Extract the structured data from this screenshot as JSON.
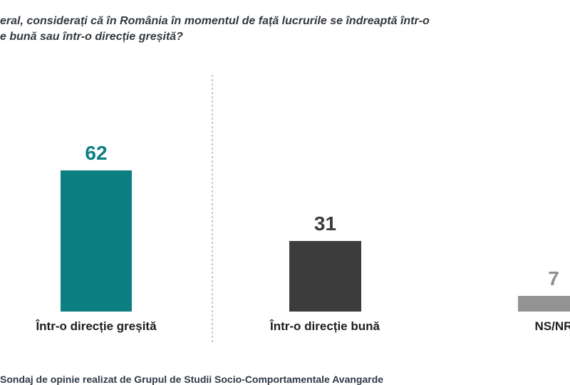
{
  "question": {
    "line1": "eral, considerați că în România în momentul de față lucrurile se îndreaptă într-o",
    "line2": "e bună sau într-o direcție greșită?"
  },
  "chart_data": {
    "type": "bar",
    "title": "eral, considerați că în România în momentul de față lucrurile se îndreaptă într-o e bună sau într-o direcție greșită?",
    "categories": [
      "Într-o direcție greșită",
      "Într-o direcție bună",
      "NS/NR"
    ],
    "values": [
      62,
      31,
      7
    ],
    "bar_colors": [
      "#0C7F82",
      "#3C3C3C",
      "#939393"
    ],
    "value_label_colors": [
      "#0C7F82",
      "#3C3C3C",
      "#8E8E8E"
    ],
    "ylim": [
      0,
      100
    ],
    "grid": false,
    "legend": "none",
    "baseline_axis_visible": false
  },
  "footer": {
    "clipped_text": "Sondaj de opinie realizat de Grupul de Studii Socio-Comportamentale Avangarde"
  },
  "colors": {
    "background": "#FFFFFF",
    "divider": "#C8C8C8",
    "question_text": "#33383D",
    "category_label": "#1D1D1D",
    "footer_text": "#2F3A46"
  }
}
